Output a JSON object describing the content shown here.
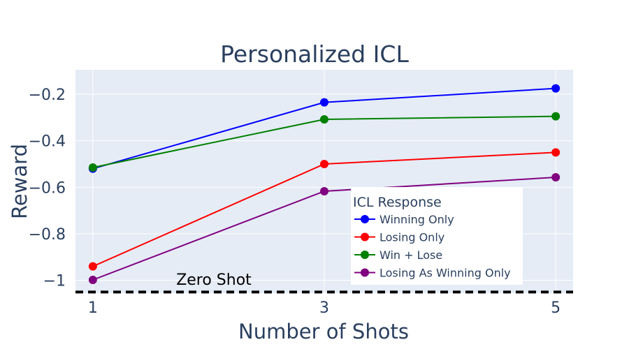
{
  "chart_data": {
    "type": "line",
    "title": "Personalized ICL",
    "xlabel": "Number of Shots",
    "ylabel": "Reward",
    "x": [
      1,
      3,
      5
    ],
    "x_ticks": [
      "1",
      "3",
      "5"
    ],
    "y_ticks": [
      "−1",
      "−0.8",
      "−0.6",
      "−0.4",
      "−0.2"
    ],
    "xlim": [
      0.85,
      5.15
    ],
    "ylim": [
      -1.055,
      -0.095
    ],
    "grid": true,
    "plot_bg": "#e5ecf6",
    "legend": {
      "title": "ICL Response",
      "placement": "bottom-right"
    },
    "series": [
      {
        "name": "Winning Only",
        "color": "#0000ff",
        "values": [
          -0.52,
          -0.235,
          -0.175
        ]
      },
      {
        "name": "Losing Only",
        "color": "#ff0000",
        "values": [
          -0.94,
          -0.5,
          -0.45
        ]
      },
      {
        "name": "Win + Lose",
        "color": "#008000",
        "values": [
          -0.515,
          -0.308,
          -0.295
        ]
      },
      {
        "name": "Losing As Winning Only",
        "color": "#800080",
        "values": [
          -0.998,
          -0.617,
          -0.557
        ]
      }
    ],
    "reference_line": {
      "label": "Zero Shot",
      "y": -1.05,
      "color": "#000000",
      "style": "dashed"
    }
  }
}
